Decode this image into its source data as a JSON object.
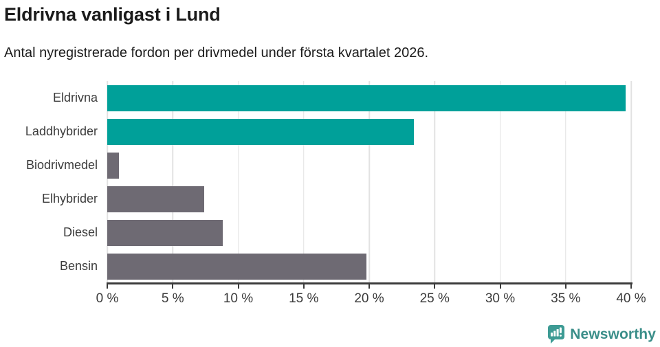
{
  "chart_data": {
    "type": "bar",
    "orientation": "horizontal",
    "title": "Eldrivna vanligast i Lund",
    "subtitle": "Antal nyregistrerade fordon per drivmedel under första kvartalet 2026.",
    "categories": [
      "Eldrivna",
      "Laddhybrider",
      "Biodrivmedel",
      "Elhybrider",
      "Diesel",
      "Bensin"
    ],
    "values": [
      39.6,
      23.4,
      0.9,
      7.4,
      8.8,
      19.8
    ],
    "bar_colors": [
      "#00a099",
      "#00a099",
      "#6e6a73",
      "#6e6a73",
      "#6e6a73",
      "#6e6a73"
    ],
    "unit": "%",
    "xlim": [
      0,
      40
    ],
    "tick_values": [
      0,
      5,
      10,
      15,
      20,
      25,
      30,
      35,
      40
    ],
    "tick_labels": [
      "0 %",
      "5 %",
      "10 %",
      "15 %",
      "20 %",
      "25 %",
      "30 %",
      "35 %",
      "40 %"
    ],
    "grid": "vertical",
    "legend": "none"
  },
  "colors": {
    "accent_teal": "#00a099",
    "bar_gray": "#6e6a73",
    "axis": "#3b3b3b",
    "gridline": "#e2e2e2",
    "title_text": "#1b1b1b",
    "label_text": "#3b3b3b"
  },
  "branding": {
    "logo_text": "Newsworthy",
    "logo_icon": "bar-chart-speech-bubble-icon",
    "logo_icon_color": "#3d9b94",
    "logo_text_color": "#3a8e89"
  }
}
